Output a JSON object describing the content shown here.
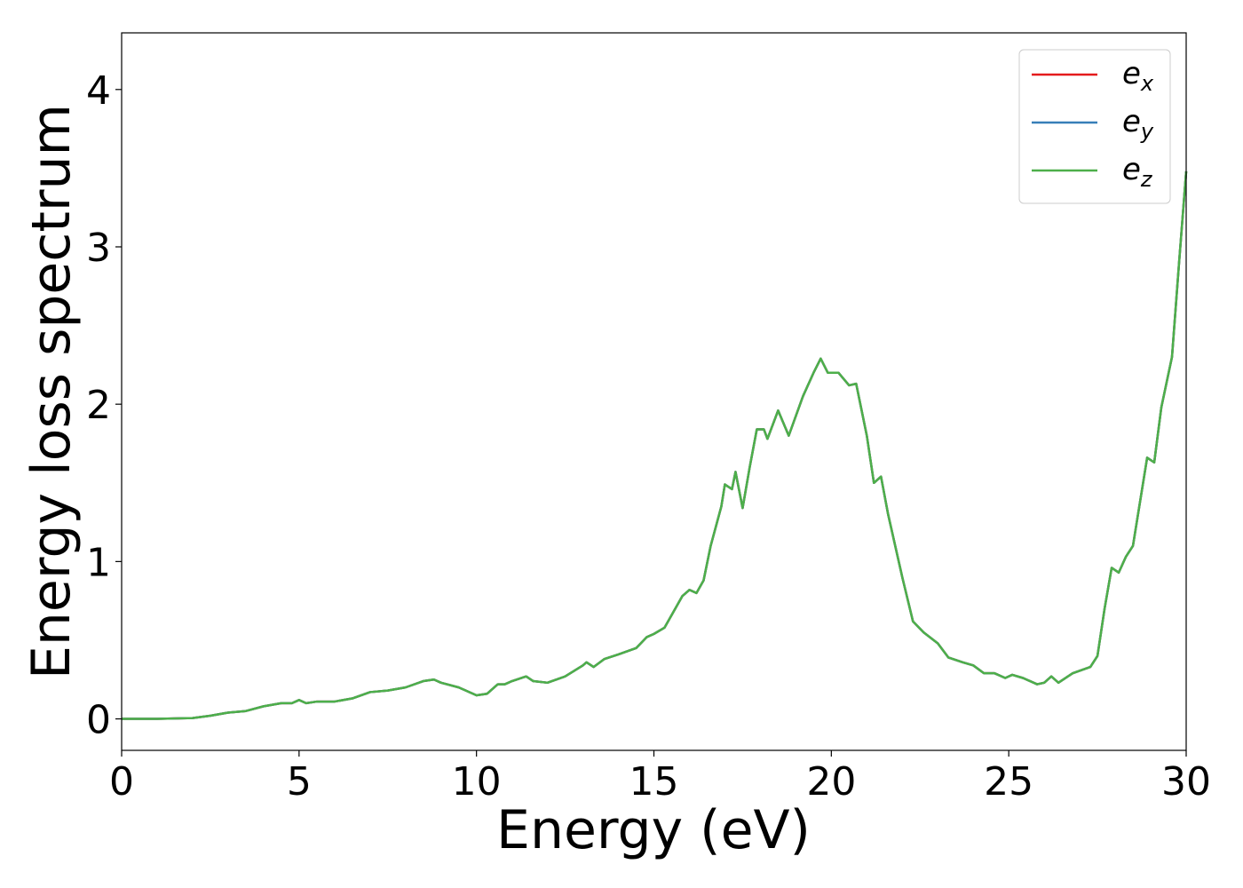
{
  "chart_data": {
    "type": "line",
    "xlabel": "Energy (eV)",
    "ylabel": "Energy loss spectrum",
    "x": [
      0,
      1,
      2,
      2.5,
      3,
      3.5,
      4,
      4.5,
      4.8,
      5,
      5.2,
      5.5,
      6,
      6.5,
      7,
      7.5,
      8,
      8.5,
      8.8,
      9,
      9.5,
      10,
      10.3,
      10.6,
      10.8,
      11,
      11.4,
      11.6,
      12,
      12.5,
      13,
      13.1,
      13.3,
      13.6,
      14,
      14.5,
      14.8,
      15,
      15.3,
      15.5,
      15.8,
      16,
      16.2,
      16.4,
      16.6,
      16.9,
      17,
      17.2,
      17.3,
      17.5,
      17.7,
      17.9,
      18.1,
      18.2,
      18.5,
      18.8,
      19.2,
      19.5,
      19.7,
      19.9,
      20.2,
      20.5,
      20.7,
      21,
      21.2,
      21.4,
      21.6,
      22,
      22.3,
      22.6,
      23,
      23.3,
      23.7,
      24,
      24.3,
      24.6,
      24.9,
      25.1,
      25.4,
      25.8,
      26,
      26.2,
      26.4,
      26.8,
      27.3,
      27.5,
      27.7,
      27.9,
      28.1,
      28.3,
      28.5,
      28.9,
      29.1,
      29.3,
      29.6,
      29.8,
      30
    ],
    "series": [
      {
        "name": "ex",
        "color": "#e41a1c",
        "values": [
          0,
          0,
          0.005,
          0.02,
          0.04,
          0.05,
          0.08,
          0.1,
          0.1,
          0.12,
          0.1,
          0.11,
          0.11,
          0.13,
          0.17,
          0.18,
          0.2,
          0.24,
          0.25,
          0.23,
          0.2,
          0.15,
          0.16,
          0.22,
          0.22,
          0.24,
          0.27,
          0.24,
          0.23,
          0.27,
          0.34,
          0.36,
          0.33,
          0.38,
          0.41,
          0.45,
          0.52,
          0.54,
          0.58,
          0.66,
          0.78,
          0.82,
          0.8,
          0.88,
          1.1,
          1.35,
          1.49,
          1.46,
          1.57,
          1.34,
          1.6,
          1.84,
          1.84,
          1.78,
          1.96,
          1.8,
          2.05,
          2.2,
          2.29,
          2.2,
          2.2,
          2.12,
          2.13,
          1.8,
          1.5,
          1.54,
          1.3,
          0.9,
          0.62,
          0.55,
          0.48,
          0.39,
          0.36,
          0.34,
          0.29,
          0.29,
          0.26,
          0.28,
          0.26,
          0.22,
          0.23,
          0.27,
          0.23,
          0.29,
          0.33,
          0.4,
          0.7,
          0.96,
          0.93,
          1.03,
          1.1,
          1.66,
          1.63,
          1.98,
          2.3,
          2.9,
          3.48
        ]
      },
      {
        "name": "ey",
        "color": "#377eb8",
        "values": [
          0,
          0,
          0.005,
          0.02,
          0.04,
          0.05,
          0.08,
          0.1,
          0.1,
          0.12,
          0.1,
          0.11,
          0.11,
          0.13,
          0.17,
          0.18,
          0.2,
          0.24,
          0.25,
          0.23,
          0.2,
          0.15,
          0.16,
          0.22,
          0.22,
          0.24,
          0.27,
          0.24,
          0.23,
          0.27,
          0.34,
          0.36,
          0.33,
          0.38,
          0.41,
          0.45,
          0.52,
          0.54,
          0.58,
          0.66,
          0.78,
          0.82,
          0.8,
          0.88,
          1.1,
          1.35,
          1.49,
          1.46,
          1.57,
          1.34,
          1.6,
          1.84,
          1.84,
          1.78,
          1.96,
          1.8,
          2.05,
          2.2,
          2.29,
          2.2,
          2.2,
          2.12,
          2.13,
          1.8,
          1.5,
          1.54,
          1.3,
          0.9,
          0.62,
          0.55,
          0.48,
          0.39,
          0.36,
          0.34,
          0.29,
          0.29,
          0.26,
          0.28,
          0.26,
          0.22,
          0.23,
          0.27,
          0.23,
          0.29,
          0.33,
          0.4,
          0.7,
          0.96,
          0.93,
          1.03,
          1.1,
          1.66,
          1.63,
          1.98,
          2.3,
          2.9,
          3.48
        ]
      },
      {
        "name": "ez",
        "color": "#4daf4a",
        "values": [
          0,
          0,
          0.005,
          0.02,
          0.04,
          0.05,
          0.08,
          0.1,
          0.1,
          0.12,
          0.1,
          0.11,
          0.11,
          0.13,
          0.17,
          0.18,
          0.2,
          0.24,
          0.25,
          0.23,
          0.2,
          0.15,
          0.16,
          0.22,
          0.22,
          0.24,
          0.27,
          0.24,
          0.23,
          0.27,
          0.34,
          0.36,
          0.33,
          0.38,
          0.41,
          0.45,
          0.52,
          0.54,
          0.58,
          0.66,
          0.78,
          0.82,
          0.8,
          0.88,
          1.1,
          1.35,
          1.49,
          1.46,
          1.57,
          1.34,
          1.6,
          1.84,
          1.84,
          1.78,
          1.96,
          1.8,
          2.05,
          2.2,
          2.29,
          2.2,
          2.2,
          2.12,
          2.13,
          1.8,
          1.5,
          1.54,
          1.3,
          0.9,
          0.62,
          0.55,
          0.48,
          0.39,
          0.36,
          0.34,
          0.29,
          0.29,
          0.26,
          0.28,
          0.26,
          0.22,
          0.23,
          0.27,
          0.23,
          0.29,
          0.33,
          0.4,
          0.7,
          0.96,
          0.93,
          1.03,
          1.1,
          1.66,
          1.63,
          1.98,
          2.3,
          2.9,
          3.48
        ]
      }
    ],
    "xlim": [
      0,
      30
    ],
    "xticks": [
      0,
      5,
      10,
      15,
      20,
      25,
      30
    ],
    "ylim": [
      -0.2,
      4.36
    ],
    "yticks": [
      0,
      1,
      2,
      3,
      4
    ],
    "legend": "upper right"
  }
}
